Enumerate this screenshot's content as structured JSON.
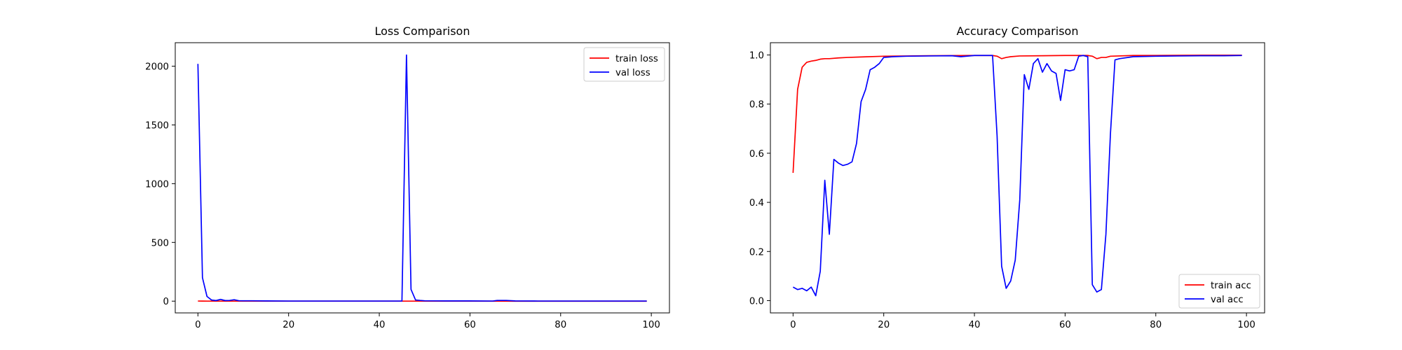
{
  "chart_data": [
    {
      "type": "line",
      "title": "Loss Comparison",
      "xlabel": "",
      "ylabel": "",
      "xlim": [
        -5,
        104
      ],
      "ylim": [
        -100,
        2200
      ],
      "xticks": [
        0,
        20,
        40,
        60,
        80,
        100
      ],
      "yticks": [
        0,
        500,
        1000,
        1500,
        2000
      ],
      "grid": false,
      "legend_position": "top-right",
      "series": [
        {
          "name": "train loss",
          "color": "#ff0000",
          "x": [
            0,
            1,
            2,
            3,
            4,
            5,
            10,
            20,
            30,
            40,
            45,
            46,
            47,
            50,
            60,
            70,
            80,
            90,
            99
          ],
          "y": [
            0.9,
            0.4,
            0.2,
            0.15,
            0.12,
            0.1,
            0.05,
            0.03,
            0.02,
            0.02,
            0.02,
            0.02,
            0.02,
            0.02,
            0.02,
            0.01,
            0.01,
            0.01,
            0.01
          ]
        },
        {
          "name": "val loss",
          "color": "#0000ff",
          "x": [
            0,
            1,
            2,
            3,
            4,
            5,
            6,
            7,
            8,
            9,
            10,
            12,
            15,
            20,
            25,
            30,
            35,
            40,
            44,
            45,
            46,
            47,
            48,
            49,
            50,
            55,
            60,
            65,
            66,
            67,
            68,
            70,
            75,
            80,
            85,
            90,
            95,
            99
          ],
          "y": [
            2020,
            200,
            40,
            10,
            5,
            15,
            5,
            6,
            12,
            4,
            3,
            3,
            2,
            1,
            1,
            1,
            1,
            1,
            1,
            1,
            2095,
            100,
            10,
            6,
            3,
            2,
            2,
            1,
            6,
            6,
            6,
            2,
            1,
            1,
            1,
            1,
            1,
            1
          ]
        }
      ]
    },
    {
      "type": "line",
      "title": "Accuracy Comparison",
      "xlabel": "",
      "ylabel": "",
      "xlim": [
        -5,
        104
      ],
      "ylim": [
        -0.05,
        1.05
      ],
      "xticks": [
        0,
        20,
        40,
        60,
        80,
        100
      ],
      "yticks": [
        0.0,
        0.2,
        0.4,
        0.6,
        0.8,
        1.0
      ],
      "grid": false,
      "legend_position": "bottom-right",
      "series": [
        {
          "name": "train acc",
          "color": "#ff0000",
          "x": [
            0,
            1,
            2,
            3,
            4,
            5,
            6,
            7,
            8,
            10,
            12,
            15,
            20,
            25,
            30,
            40,
            44,
            45,
            46,
            47,
            48,
            50,
            55,
            60,
            65,
            66,
            67,
            68,
            69,
            70,
            75,
            80,
            90,
            99
          ],
          "y": [
            0.52,
            0.86,
            0.95,
            0.97,
            0.975,
            0.978,
            0.983,
            0.985,
            0.985,
            0.988,
            0.99,
            0.992,
            0.995,
            0.996,
            0.997,
            0.998,
            0.998,
            0.995,
            0.985,
            0.99,
            0.993,
            0.996,
            0.997,
            0.998,
            0.998,
            0.995,
            0.985,
            0.99,
            0.99,
            0.995,
            0.998,
            0.998,
            0.999,
            0.999
          ]
        },
        {
          "name": "val acc",
          "color": "#0000ff",
          "x": [
            0,
            1,
            2,
            3,
            4,
            5,
            6,
            7,
            8,
            9,
            10,
            11,
            12,
            13,
            14,
            15,
            16,
            17,
            18,
            19,
            20,
            22,
            25,
            30,
            35,
            37,
            40,
            44,
            45,
            46,
            47,
            48,
            49,
            50,
            51,
            52,
            53,
            54,
            55,
            56,
            57,
            58,
            59,
            60,
            61,
            62,
            63,
            64,
            65,
            66,
            67,
            68,
            69,
            70,
            71,
            72,
            75,
            80,
            85,
            90,
            95,
            99
          ],
          "y": [
            0.055,
            0.045,
            0.05,
            0.04,
            0.055,
            0.02,
            0.12,
            0.49,
            0.27,
            0.575,
            0.56,
            0.55,
            0.555,
            0.565,
            0.64,
            0.81,
            0.86,
            0.94,
            0.95,
            0.965,
            0.99,
            0.993,
            0.995,
            0.996,
            0.997,
            0.993,
            0.998,
            0.998,
            0.67,
            0.14,
            0.05,
            0.08,
            0.165,
            0.41,
            0.92,
            0.86,
            0.965,
            0.985,
            0.93,
            0.965,
            0.935,
            0.925,
            0.815,
            0.94,
            0.935,
            0.94,
            0.995,
            0.998,
            0.993,
            0.065,
            0.035,
            0.045,
            0.27,
            0.68,
            0.98,
            0.985,
            0.993,
            0.995,
            0.996,
            0.997,
            0.997,
            0.998
          ]
        }
      ]
    }
  ]
}
